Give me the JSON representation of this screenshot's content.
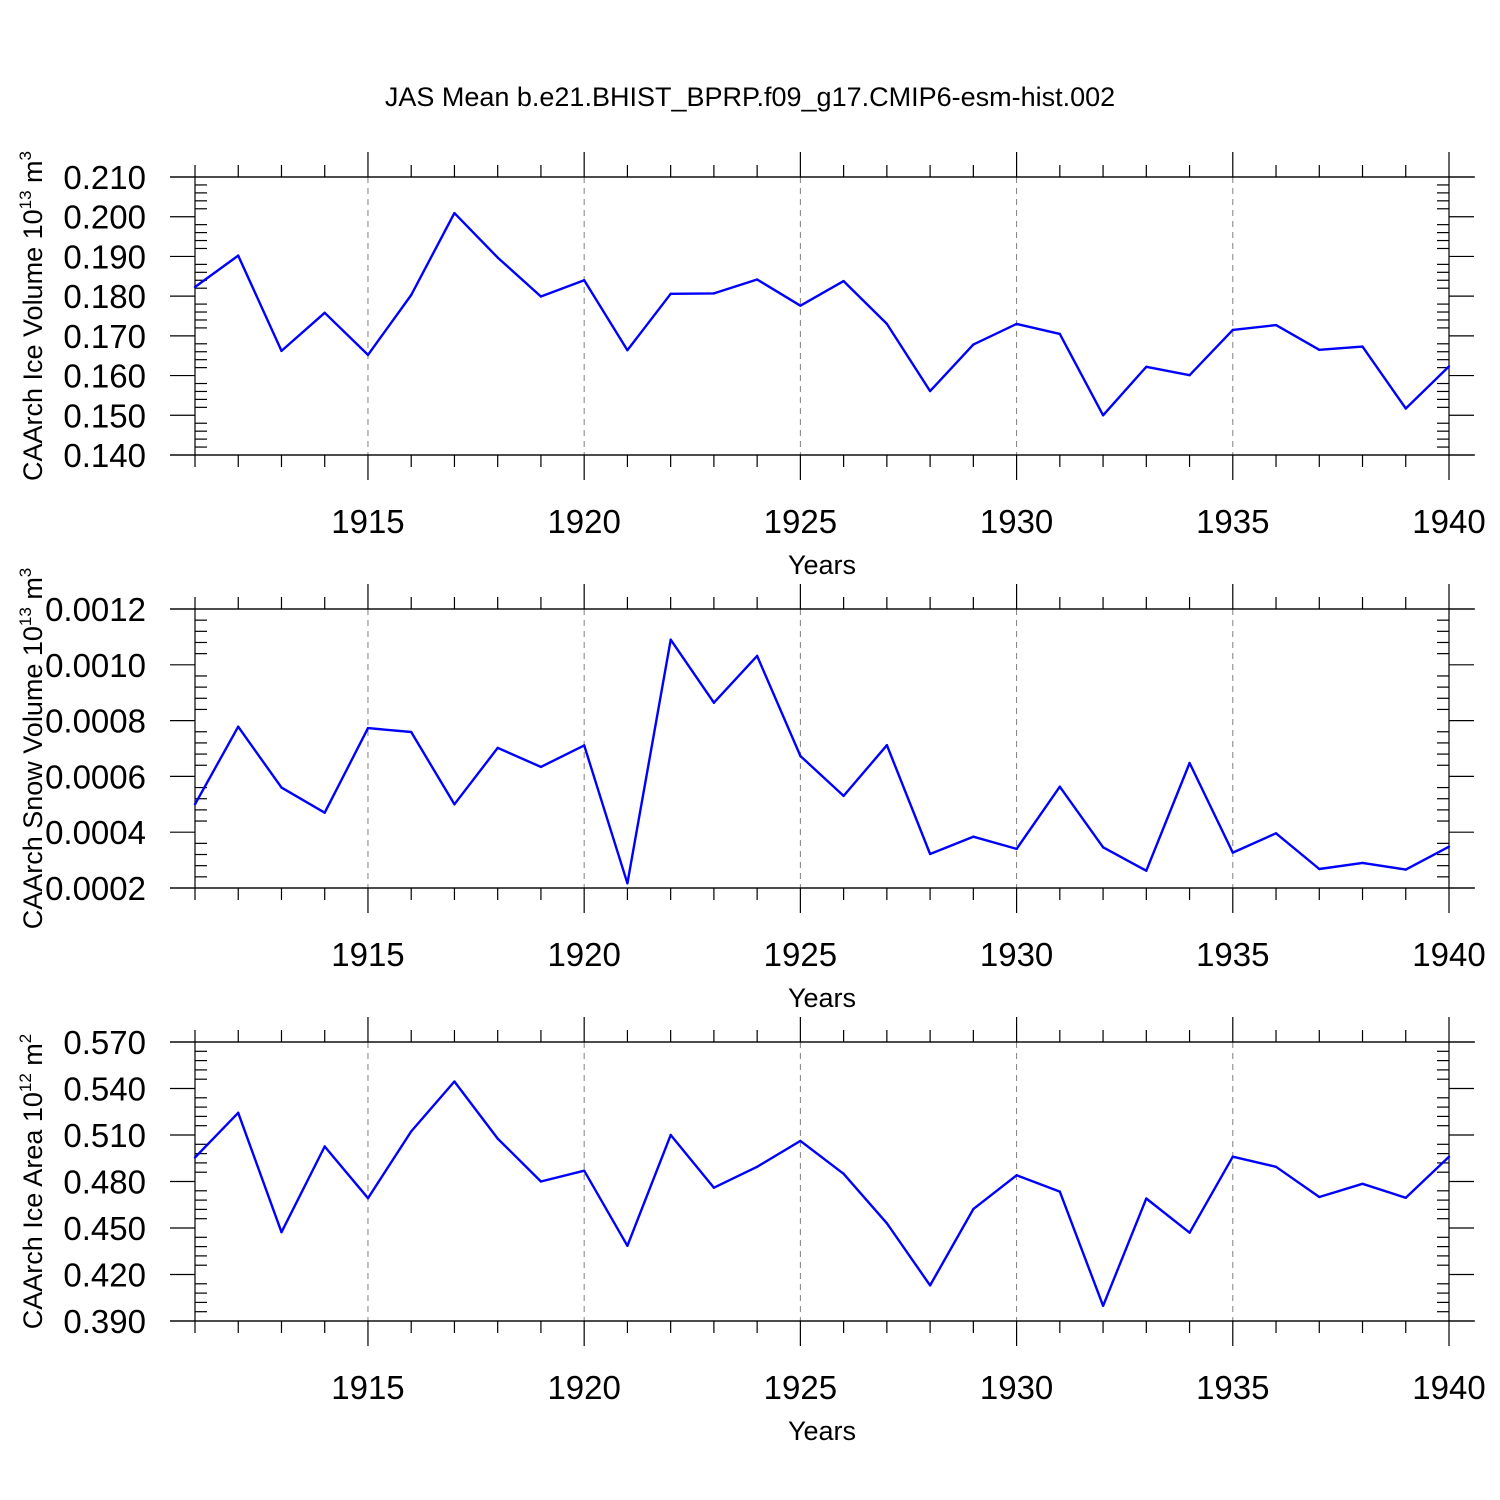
{
  "title": "JAS Mean b.e21.BHIST_BPRP.f09_g17.CMIP6-esm-hist.002",
  "colors": {
    "series": "#0000ff",
    "grid": "#808080",
    "axis": "#000000"
  },
  "chart_data": [
    {
      "type": "line",
      "ylabel_text": "CAArch Ice Volume 10",
      "ylabel_exp": "13",
      "ylabel_unit": " m",
      "ylabel_unit_exp": "3",
      "xlabel": "Years",
      "xlim": [
        1911,
        1940
      ],
      "ylim": [
        0.14,
        0.21
      ],
      "xticks": [
        1915,
        1920,
        1925,
        1930,
        1935,
        1940
      ],
      "yticks": [
        0.14,
        0.15,
        0.16,
        0.17,
        0.18,
        0.19,
        0.2,
        0.21
      ],
      "ytick_labels": [
        "0.140",
        "0.150",
        "0.160",
        "0.170",
        "0.180",
        "0.190",
        "0.200",
        "0.210"
      ],
      "grid": "vertical-dashed",
      "x": [
        1911,
        1912,
        1913,
        1914,
        1915,
        1916,
        1917,
        1918,
        1919,
        1920,
        1921,
        1922,
        1923,
        1924,
        1925,
        1926,
        1927,
        1928,
        1929,
        1930,
        1931,
        1932,
        1933,
        1934,
        1935,
        1936,
        1937,
        1938,
        1939,
        1940
      ],
      "values": [
        0.1823,
        0.1902,
        0.1662,
        0.1758,
        0.1652,
        0.1803,
        0.2009,
        0.1897,
        0.1799,
        0.184,
        0.1664,
        0.1806,
        0.1807,
        0.1842,
        0.1776,
        0.1838,
        0.173,
        0.1561,
        0.1678,
        0.173,
        0.1705,
        0.15,
        0.1622,
        0.1601,
        0.1715,
        0.1727,
        0.1665,
        0.1673,
        0.1517,
        0.1623
      ]
    },
    {
      "type": "line",
      "ylabel_text": "CAArch Snow Volume 10",
      "ylabel_exp": "13",
      "ylabel_unit": " m",
      "ylabel_unit_exp": "3",
      "xlabel": "Years",
      "xlim": [
        1911,
        1940
      ],
      "ylim": [
        0.0002,
        0.0012
      ],
      "xticks": [
        1915,
        1920,
        1925,
        1930,
        1935,
        1940
      ],
      "yticks": [
        0.0002,
        0.0004,
        0.0006,
        0.0008,
        0.001,
        0.0012
      ],
      "ytick_labels": [
        "0.0002",
        "0.0004",
        "0.0006",
        "0.0008",
        "0.0010",
        "0.0012"
      ],
      "grid": "vertical-dashed",
      "x": [
        1911,
        1912,
        1913,
        1914,
        1915,
        1916,
        1917,
        1918,
        1919,
        1920,
        1921,
        1922,
        1923,
        1924,
        1925,
        1926,
        1927,
        1928,
        1929,
        1930,
        1931,
        1932,
        1933,
        1934,
        1935,
        1936,
        1937,
        1938,
        1939,
        1940
      ],
      "values": [
        0.0005,
        0.000778,
        0.00056,
        0.00047,
        0.000773,
        0.000759,
        0.0005,
        0.000702,
        0.000634,
        0.000711,
        0.000217,
        0.00109,
        0.000864,
        0.001032,
        0.000673,
        0.00053,
        0.000712,
        0.000322,
        0.000384,
        0.00034,
        0.000563,
        0.000346,
        0.000262,
        0.000648,
        0.000327,
        0.000396,
        0.000268,
        0.00029,
        0.000266,
        0.000348
      ]
    },
    {
      "type": "line",
      "ylabel_text": "CAArch Ice Area 10",
      "ylabel_exp": "12",
      "ylabel_unit": " m",
      "ylabel_unit_exp": "2",
      "xlabel": "Years",
      "xlim": [
        1911,
        1940
      ],
      "ylim": [
        0.39,
        0.57
      ],
      "xticks": [
        1915,
        1920,
        1925,
        1930,
        1935,
        1940
      ],
      "yticks": [
        0.39,
        0.42,
        0.45,
        0.48,
        0.51,
        0.54,
        0.57
      ],
      "ytick_labels": [
        "0.390",
        "0.420",
        "0.450",
        "0.480",
        "0.510",
        "0.540",
        "0.570"
      ],
      "grid": "vertical-dashed",
      "x": [
        1911,
        1912,
        1913,
        1914,
        1915,
        1916,
        1917,
        1918,
        1919,
        1920,
        1921,
        1922,
        1923,
        1924,
        1925,
        1926,
        1927,
        1928,
        1929,
        1930,
        1931,
        1932,
        1933,
        1934,
        1935,
        1936,
        1937,
        1938,
        1939,
        1940
      ],
      "values": [
        0.4955,
        0.5243,
        0.4473,
        0.5026,
        0.4692,
        0.5123,
        0.5445,
        0.5077,
        0.48,
        0.487,
        0.4385,
        0.51,
        0.476,
        0.4895,
        0.5062,
        0.485,
        0.453,
        0.413,
        0.4622,
        0.484,
        0.4735,
        0.3998,
        0.469,
        0.447,
        0.496,
        0.4895,
        0.47,
        0.4785,
        0.4695,
        0.496
      ]
    }
  ]
}
